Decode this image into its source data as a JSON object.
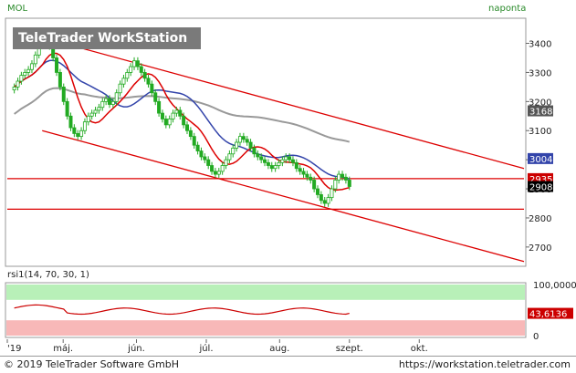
{
  "header": {
    "symbol": "MOL",
    "period": "naponta"
  },
  "watermark": {
    "label": "TeleTrader WorkStation"
  },
  "price_axis": {
    "ticks": [
      "3400",
      "3300",
      "3200",
      "3100",
      "3000",
      "2900",
      "2800",
      "2700"
    ],
    "badges": [
      {
        "label": "3168",
        "kind": "gray-line"
      },
      {
        "label": "3004",
        "kind": "blue-line"
      },
      {
        "label": "2935",
        "kind": "red-line"
      },
      {
        "label": "2908",
        "kind": "last-price"
      }
    ]
  },
  "indicator": {
    "label": "rsi1(14, 70, 30, 1)",
    "axis_ticks": [
      "100,0000",
      "0"
    ],
    "value_badge": "43,6136",
    "colors": {
      "upper_zone": "#b8f0b8",
      "lower_zone": "#f8b8b8",
      "line": "#cc0000"
    }
  },
  "time_axis": {
    "labels": [
      "'19",
      "máj.",
      "jún.",
      "júl.",
      "aug.",
      "szept.",
      "okt."
    ]
  },
  "footer": {
    "copyright": "© 2019 TeleTrader Software GmbH",
    "website": "https://workstation.teletrader.com"
  },
  "colors": {
    "candle": "#22aa22",
    "trend": "#dd0000",
    "ma_short": "#dd0000",
    "ma_mid": "#3344aa",
    "ma_long": "#999999",
    "badge_gray": "#555555",
    "badge_blue": "#3344aa",
    "badge_red": "#cc0000",
    "badge_last": "#000000"
  },
  "chart_data": {
    "type": "candlestick",
    "title": "",
    "y_range": [
      2640,
      3480
    ],
    "x_range_index": [
      0,
      148
    ],
    "x_label_indices": [
      0,
      16,
      37,
      57,
      78,
      98,
      118
    ],
    "candles_close": [
      3250,
      3270,
      3290,
      3300,
      3310,
      3330,
      3360,
      3400,
      3430,
      3420,
      3390,
      3350,
      3300,
      3250,
      3200,
      3150,
      3110,
      3090,
      3080,
      3100,
      3130,
      3150,
      3160,
      3170,
      3180,
      3200,
      3210,
      3190,
      3200,
      3230,
      3260,
      3280,
      3300,
      3320,
      3340,
      3320,
      3300,
      3280,
      3260,
      3230,
      3200,
      3160,
      3140,
      3120,
      3140,
      3160,
      3170,
      3150,
      3120,
      3100,
      3080,
      3050,
      3030,
      3010,
      3000,
      2980,
      2960,
      2950,
      2960,
      2980,
      3000,
      3020,
      3040,
      3060,
      3080,
      3070,
      3060,
      3040,
      3020,
      3010,
      3000,
      2990,
      2980,
      2970,
      2980,
      2990,
      3000,
      3010,
      3000,
      2990,
      2970,
      2960,
      2950,
      2940,
      2930,
      2900,
      2880,
      2860,
      2850,
      2870,
      2900,
      2930,
      2950,
      2940,
      2930,
      2908
    ],
    "trend_lines": [
      {
        "name": "upper",
        "x": [
          10,
          148
        ],
        "y": [
          3420,
          2970
        ]
      },
      {
        "name": "lower",
        "x": [
          10,
          148
        ],
        "y": [
          3100,
          2650
        ]
      }
    ],
    "horizontal_levels": [
      2935,
      2830
    ],
    "ma_short_last": 2935,
    "ma_mid_last": 3004,
    "ma_long_last": 3168,
    "rsi_last": 43.6136,
    "rsi_bounds": [
      30,
      70
    ]
  }
}
